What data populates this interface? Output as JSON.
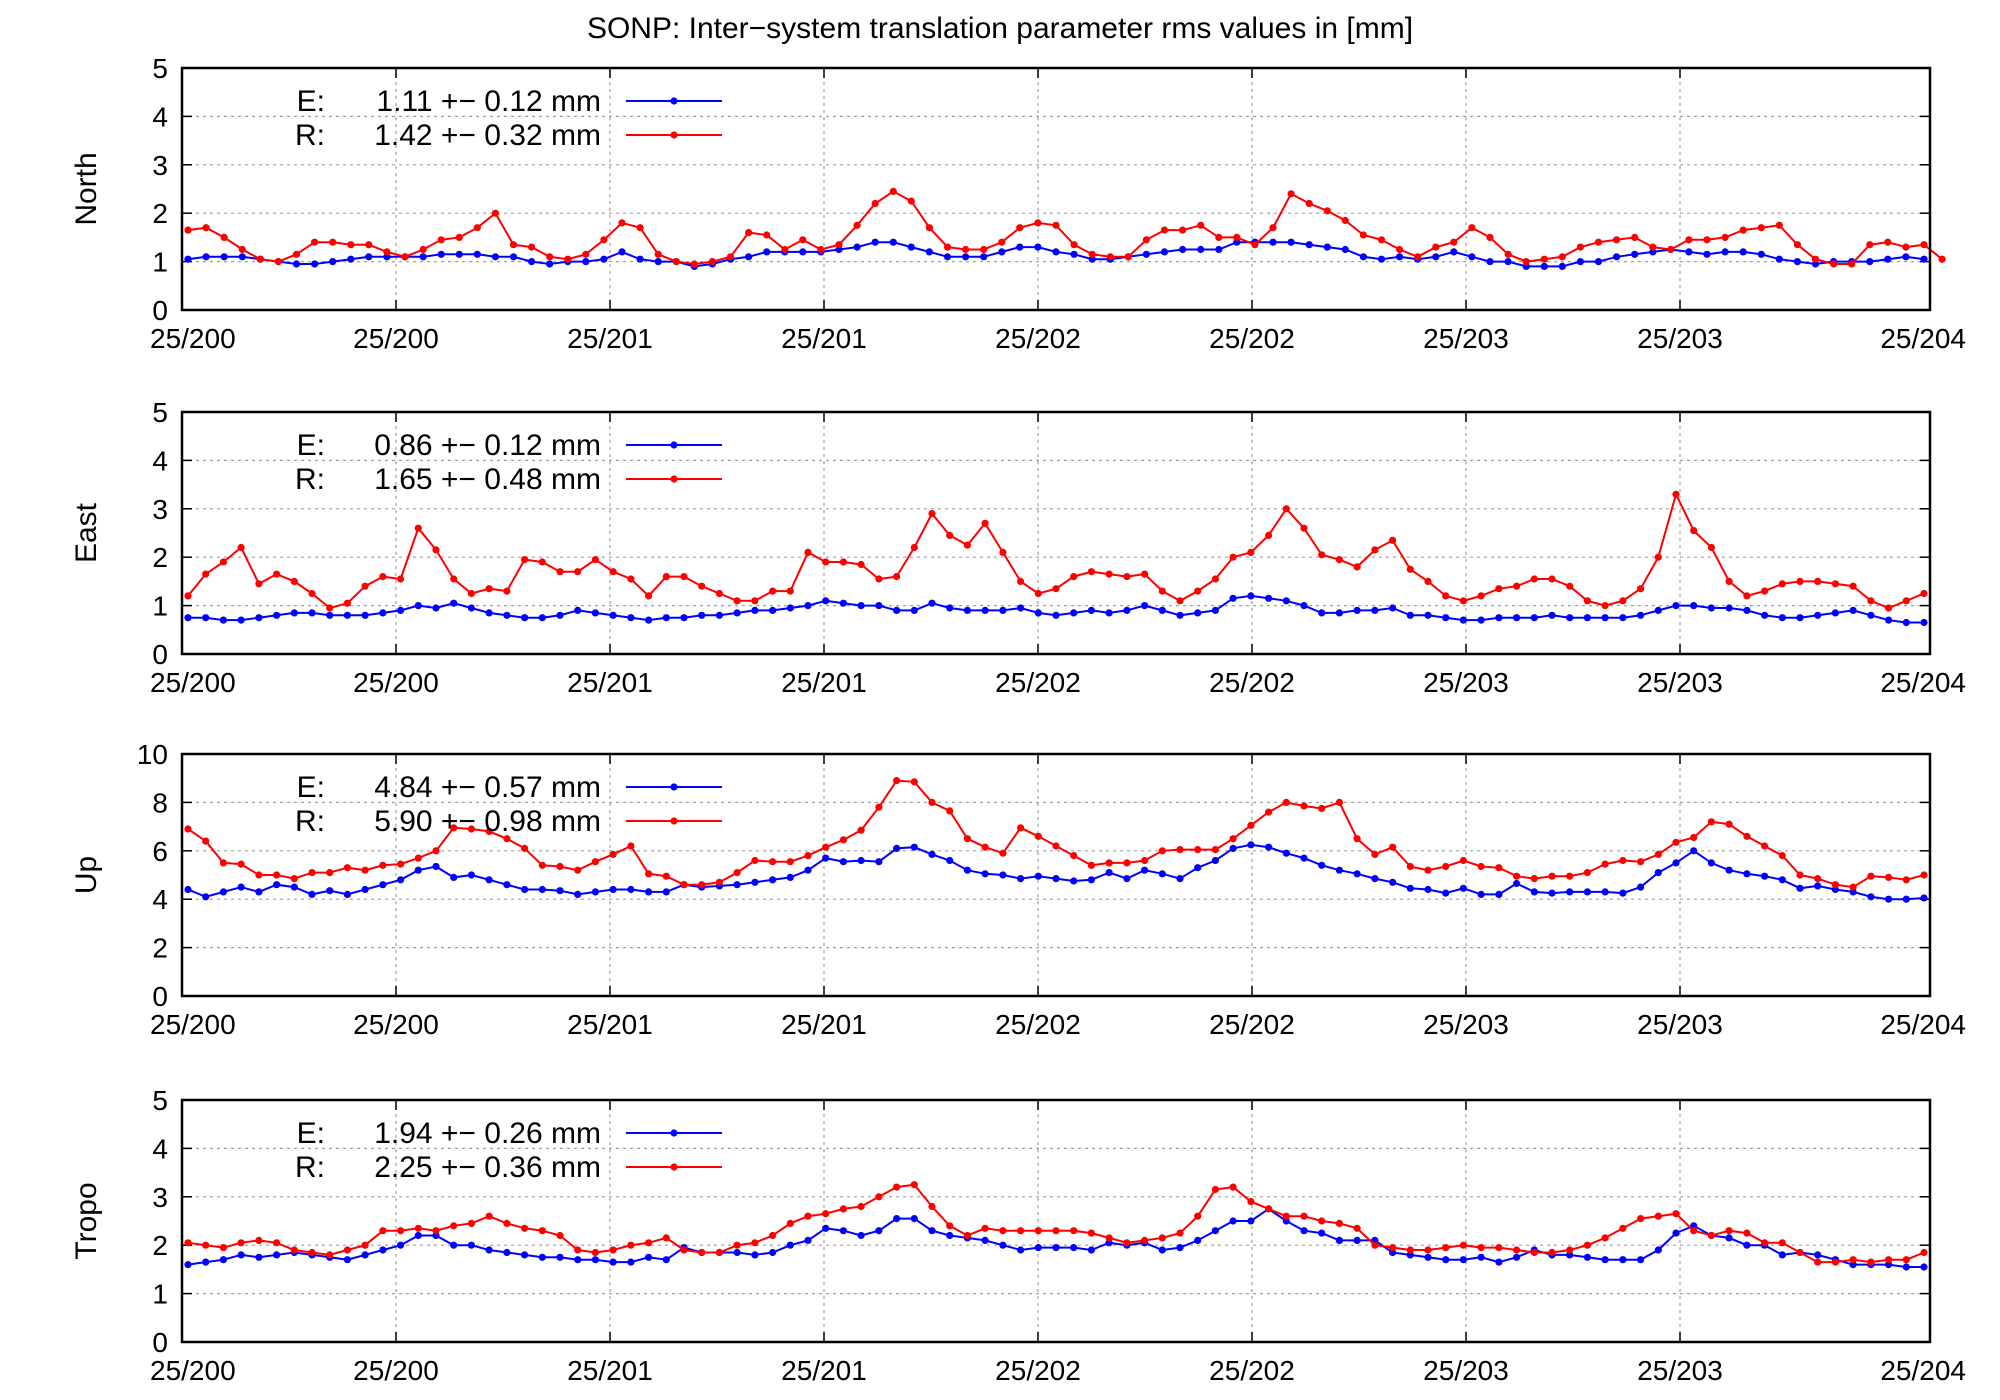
{
  "page": {
    "title": "SONP: Inter−system translation parameter rms values in [mm]"
  },
  "chart_data": [
    {
      "type": "line",
      "ylabel": "North",
      "ylim": [
        0,
        5
      ],
      "yticks": [
        "0",
        "1",
        "2",
        "3",
        "4",
        "5"
      ],
      "xticks": [
        "25/200",
        "25/200",
        "25/201",
        "25/201",
        "25/202",
        "25/202",
        "25/203",
        "25/203",
        "25/204"
      ],
      "grid": true,
      "legend_position": "top-left",
      "series": [
        {
          "name": "E:",
          "stat": "1.11 +− 0.12 mm",
          "color": "#0000ff",
          "values": [
            1.05,
            1.1,
            1.1,
            1.1,
            1.05,
            1.0,
            0.95,
            0.95,
            1.0,
            1.05,
            1.1,
            1.1,
            1.1,
            1.1,
            1.15,
            1.15,
            1.15,
            1.1,
            1.1,
            1.0,
            0.95,
            1.0,
            1.0,
            1.05,
            1.2,
            1.05,
            1.0,
            1.0,
            0.9,
            0.95,
            1.05,
            1.1,
            1.2,
            1.2,
            1.2,
            1.2,
            1.25,
            1.3,
            1.4,
            1.4,
            1.3,
            1.2,
            1.1,
            1.1,
            1.1,
            1.2,
            1.3,
            1.3,
            1.2,
            1.15,
            1.05,
            1.05,
            1.1,
            1.15,
            1.2,
            1.25,
            1.25,
            1.25,
            1.4,
            1.4,
            1.4,
            1.4,
            1.35,
            1.3,
            1.25,
            1.1,
            1.05,
            1.1,
            1.05,
            1.1,
            1.2,
            1.1,
            1.0,
            1.0,
            0.9,
            0.9,
            0.9,
            1.0,
            1.0,
            1.1,
            1.15,
            1.2,
            1.25,
            1.2,
            1.15,
            1.2,
            1.2,
            1.15,
            1.05,
            1.0,
            0.95,
            1.0,
            1.0,
            1.0,
            1.05,
            1.1,
            1.05
          ]
        },
        {
          "name": "R:",
          "stat": "1.42 +− 0.32 mm",
          "color": "#ff0000",
          "values": [
            1.65,
            1.7,
            1.5,
            1.25,
            1.05,
            1.0,
            1.15,
            1.4,
            1.4,
            1.35,
            1.35,
            1.2,
            1.1,
            1.25,
            1.45,
            1.5,
            1.7,
            2.0,
            1.35,
            1.3,
            1.1,
            1.05,
            1.15,
            1.45,
            1.8,
            1.7,
            1.15,
            1.0,
            0.95,
            1.0,
            1.1,
            1.6,
            1.55,
            1.25,
            1.45,
            1.25,
            1.35,
            1.75,
            2.2,
            2.45,
            2.25,
            1.7,
            1.3,
            1.25,
            1.25,
            1.4,
            1.7,
            1.8,
            1.75,
            1.35,
            1.15,
            1.1,
            1.1,
            1.45,
            1.65,
            1.65,
            1.75,
            1.5,
            1.5,
            1.35,
            1.7,
            2.4,
            2.2,
            2.05,
            1.85,
            1.55,
            1.45,
            1.25,
            1.1,
            1.3,
            1.4,
            1.7,
            1.5,
            1.15,
            1.0,
            1.05,
            1.1,
            1.3,
            1.4,
            1.45,
            1.5,
            1.3,
            1.25,
            1.45,
            1.45,
            1.5,
            1.65,
            1.7,
            1.75,
            1.35,
            1.05,
            0.95,
            0.95,
            1.35,
            1.4,
            1.3,
            1.35,
            1.05
          ]
        }
      ]
    },
    {
      "type": "line",
      "ylabel": "East",
      "ylim": [
        0,
        5
      ],
      "yticks": [
        "0",
        "1",
        "2",
        "3",
        "4",
        "5"
      ],
      "xticks": [
        "25/200",
        "25/200",
        "25/201",
        "25/201",
        "25/202",
        "25/202",
        "25/203",
        "25/203",
        "25/204"
      ],
      "grid": true,
      "legend_position": "top-left",
      "series": [
        {
          "name": "E:",
          "stat": "0.86 +− 0.12 mm",
          "color": "#0000ff",
          "values": [
            0.75,
            0.75,
            0.7,
            0.7,
            0.75,
            0.8,
            0.85,
            0.85,
            0.8,
            0.8,
            0.8,
            0.85,
            0.9,
            1.0,
            0.95,
            1.05,
            0.95,
            0.85,
            0.8,
            0.75,
            0.75,
            0.8,
            0.9,
            0.85,
            0.8,
            0.75,
            0.7,
            0.75,
            0.75,
            0.8,
            0.8,
            0.85,
            0.9,
            0.9,
            0.95,
            1.0,
            1.1,
            1.05,
            1.0,
            1.0,
            0.9,
            0.9,
            1.05,
            0.95,
            0.9,
            0.9,
            0.9,
            0.95,
            0.85,
            0.8,
            0.85,
            0.9,
            0.85,
            0.9,
            1.0,
            0.9,
            0.8,
            0.85,
            0.9,
            1.15,
            1.2,
            1.15,
            1.1,
            1.0,
            0.85,
            0.85,
            0.9,
            0.9,
            0.95,
            0.8,
            0.8,
            0.75,
            0.7,
            0.7,
            0.75,
            0.75,
            0.75,
            0.8,
            0.75,
            0.75,
            0.75,
            0.75,
            0.8,
            0.9,
            1.0,
            1.0,
            0.95,
            0.95,
            0.9,
            0.8,
            0.75,
            0.75,
            0.8,
            0.85,
            0.9,
            0.8,
            0.7,
            0.65,
            0.65
          ]
        },
        {
          "name": "R:",
          "stat": "1.65 +− 0.48 mm",
          "color": "#ff0000",
          "values": [
            1.2,
            1.65,
            1.9,
            2.2,
            1.45,
            1.65,
            1.5,
            1.25,
            0.95,
            1.05,
            1.4,
            1.6,
            1.55,
            2.6,
            2.15,
            1.55,
            1.25,
            1.35,
            1.3,
            1.95,
            1.9,
            1.7,
            1.7,
            1.95,
            1.7,
            1.55,
            1.2,
            1.6,
            1.6,
            1.4,
            1.25,
            1.1,
            1.1,
            1.3,
            1.3,
            2.1,
            1.9,
            1.9,
            1.85,
            1.55,
            1.6,
            2.2,
            2.9,
            2.45,
            2.25,
            2.7,
            2.1,
            1.5,
            1.25,
            1.35,
            1.6,
            1.7,
            1.65,
            1.6,
            1.65,
            1.3,
            1.1,
            1.3,
            1.55,
            2.0,
            2.1,
            2.45,
            3.0,
            2.6,
            2.05,
            1.95,
            1.8,
            2.15,
            2.35,
            1.75,
            1.5,
            1.2,
            1.1,
            1.2,
            1.35,
            1.4,
            1.55,
            1.55,
            1.4,
            1.1,
            1.0,
            1.1,
            1.35,
            2.0,
            3.3,
            2.55,
            2.2,
            1.5,
            1.2,
            1.3,
            1.45,
            1.5,
            1.5,
            1.45,
            1.4,
            1.1,
            0.95,
            1.1,
            1.25
          ]
        }
      ]
    },
    {
      "type": "line",
      "ylabel": "Up",
      "ylim": [
        0,
        10
      ],
      "yticks": [
        "0",
        "2",
        "4",
        "6",
        "8",
        "10"
      ],
      "xticks": [
        "25/200",
        "25/200",
        "25/201",
        "25/201",
        "25/202",
        "25/202",
        "25/203",
        "25/203",
        "25/204"
      ],
      "grid": true,
      "legend_position": "top-left",
      "series": [
        {
          "name": "E:",
          "stat": "4.84 +− 0.57 mm",
          "color": "#0000ff",
          "values": [
            4.4,
            4.1,
            4.3,
            4.5,
            4.3,
            4.6,
            4.5,
            4.2,
            4.35,
            4.2,
            4.4,
            4.6,
            4.8,
            5.2,
            5.35,
            4.9,
            5.0,
            4.8,
            4.6,
            4.4,
            4.4,
            4.35,
            4.2,
            4.3,
            4.4,
            4.4,
            4.3,
            4.3,
            4.6,
            4.5,
            4.55,
            4.6,
            4.7,
            4.8,
            4.9,
            5.2,
            5.7,
            5.55,
            5.6,
            5.55,
            6.1,
            6.15,
            5.85,
            5.6,
            5.2,
            5.05,
            5.0,
            4.85,
            4.95,
            4.85,
            4.75,
            4.8,
            5.1,
            4.85,
            5.2,
            5.05,
            4.85,
            5.3,
            5.6,
            6.1,
            6.25,
            6.15,
            5.9,
            5.7,
            5.4,
            5.2,
            5.05,
            4.85,
            4.7,
            4.45,
            4.4,
            4.25,
            4.45,
            4.2,
            4.2,
            4.65,
            4.3,
            4.25,
            4.3,
            4.3,
            4.3,
            4.25,
            4.5,
            5.1,
            5.5,
            6.0,
            5.5,
            5.2,
            5.05,
            4.95,
            4.8,
            4.45,
            4.55,
            4.4,
            4.3,
            4.1,
            4.0,
            4.0,
            4.05
          ]
        },
        {
          "name": "R:",
          "stat": "5.90 +− 0.98 mm",
          "color": "#ff0000",
          "values": [
            6.9,
            6.4,
            5.5,
            5.45,
            5.0,
            5.0,
            4.85,
            5.1,
            5.1,
            5.3,
            5.2,
            5.4,
            5.45,
            5.7,
            6.0,
            6.95,
            6.9,
            6.8,
            6.5,
            6.1,
            5.4,
            5.35,
            5.2,
            5.55,
            5.85,
            6.2,
            5.05,
            4.95,
            4.6,
            4.6,
            4.7,
            5.1,
            5.6,
            5.55,
            5.55,
            5.8,
            6.15,
            6.45,
            6.85,
            7.8,
            8.9,
            8.85,
            8.0,
            7.65,
            6.5,
            6.15,
            5.9,
            6.95,
            6.6,
            6.2,
            5.8,
            5.4,
            5.5,
            5.5,
            5.6,
            6.0,
            6.05,
            6.05,
            6.05,
            6.5,
            7.05,
            7.6,
            8.0,
            7.85,
            7.75,
            8.0,
            6.5,
            5.85,
            6.15,
            5.35,
            5.2,
            5.35,
            5.6,
            5.35,
            5.3,
            4.95,
            4.85,
            4.95,
            4.95,
            5.1,
            5.45,
            5.6,
            5.55,
            5.85,
            6.35,
            6.55,
            7.2,
            7.1,
            6.6,
            6.2,
            5.8,
            5.0,
            4.85,
            4.6,
            4.5,
            4.95,
            4.9,
            4.8,
            5.0
          ]
        }
      ]
    },
    {
      "type": "line",
      "ylabel": "Tropo",
      "ylim": [
        0,
        5
      ],
      "yticks": [
        "0",
        "1",
        "2",
        "3",
        "4",
        "5"
      ],
      "xticks": [
        "25/200",
        "25/200",
        "25/201",
        "25/201",
        "25/202",
        "25/202",
        "25/203",
        "25/203",
        "25/204"
      ],
      "grid": true,
      "legend_position": "top-left",
      "series": [
        {
          "name": "E:",
          "stat": "1.94 +− 0.26 mm",
          "color": "#0000ff",
          "values": [
            1.6,
            1.65,
            1.7,
            1.8,
            1.75,
            1.8,
            1.85,
            1.8,
            1.75,
            1.7,
            1.8,
            1.9,
            2.0,
            2.2,
            2.2,
            2.0,
            2.0,
            1.9,
            1.85,
            1.8,
            1.75,
            1.75,
            1.7,
            1.7,
            1.65,
            1.65,
            1.75,
            1.7,
            1.95,
            1.85,
            1.85,
            1.85,
            1.8,
            1.85,
            2.0,
            2.1,
            2.35,
            2.3,
            2.2,
            2.3,
            2.55,
            2.55,
            2.3,
            2.2,
            2.15,
            2.1,
            2.0,
            1.9,
            1.95,
            1.95,
            1.95,
            1.9,
            2.05,
            2.0,
            2.05,
            1.9,
            1.95,
            2.1,
            2.3,
            2.5,
            2.5,
            2.75,
            2.5,
            2.3,
            2.25,
            2.1,
            2.1,
            2.1,
            1.85,
            1.8,
            1.75,
            1.7,
            1.7,
            1.75,
            1.65,
            1.75,
            1.9,
            1.8,
            1.8,
            1.75,
            1.7,
            1.7,
            1.7,
            1.9,
            2.25,
            2.4,
            2.2,
            2.15,
            2.0,
            2.0,
            1.8,
            1.85,
            1.8,
            1.7,
            1.6,
            1.6,
            1.6,
            1.55,
            1.55
          ]
        },
        {
          "name": "R:",
          "stat": "2.25 +− 0.36 mm",
          "color": "#ff0000",
          "values": [
            2.05,
            2.0,
            1.95,
            2.05,
            2.1,
            2.05,
            1.9,
            1.85,
            1.8,
            1.9,
            2.0,
            2.3,
            2.3,
            2.35,
            2.3,
            2.4,
            2.45,
            2.6,
            2.45,
            2.35,
            2.3,
            2.2,
            1.9,
            1.85,
            1.9,
            2.0,
            2.05,
            2.15,
            1.9,
            1.85,
            1.85,
            2.0,
            2.05,
            2.2,
            2.45,
            2.6,
            2.65,
            2.75,
            2.8,
            3.0,
            3.2,
            3.25,
            2.8,
            2.4,
            2.2,
            2.35,
            2.3,
            2.3,
            2.3,
            2.3,
            2.3,
            2.25,
            2.15,
            2.05,
            2.1,
            2.15,
            2.25,
            2.6,
            3.15,
            3.2,
            2.9,
            2.75,
            2.6,
            2.6,
            2.5,
            2.45,
            2.35,
            2.0,
            1.95,
            1.9,
            1.9,
            1.95,
            2.0,
            1.95,
            1.95,
            1.9,
            1.85,
            1.85,
            1.9,
            2.0,
            2.15,
            2.35,
            2.55,
            2.6,
            2.65,
            2.3,
            2.2,
            2.3,
            2.25,
            2.05,
            2.05,
            1.85,
            1.65,
            1.65,
            1.7,
            1.65,
            1.7,
            1.7,
            1.85
          ]
        }
      ]
    }
  ]
}
